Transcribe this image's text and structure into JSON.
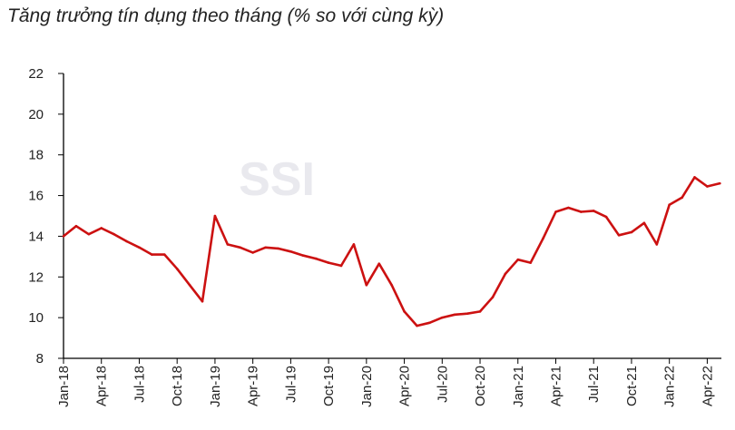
{
  "chart_data": {
    "type": "line",
    "title": "Tăng trưởng tín dụng theo tháng (% so với cùng kỳ)",
    "watermark": "SSI",
    "xlabel": "",
    "ylabel": "",
    "ylim": [
      8,
      22
    ],
    "yticks": [
      8,
      10,
      12,
      14,
      16,
      18,
      20,
      22
    ],
    "xtick_labels": [
      "Jan-18",
      "Apr-18",
      "Jul-18",
      "Oct-18",
      "Jan-19",
      "Apr-19",
      "Jul-19",
      "Oct-19",
      "Jan-20",
      "Apr-20",
      "Jul-20",
      "Oct-20",
      "Jan-21",
      "Apr-21",
      "Jul-21",
      "Oct-21",
      "Jan-22",
      "Apr-22"
    ],
    "grid": false,
    "line_color": "#cc1111",
    "x": [
      "Jan-18",
      "Feb-18",
      "Mar-18",
      "Apr-18",
      "May-18",
      "Jun-18",
      "Jul-18",
      "Aug-18",
      "Sep-18",
      "Oct-18",
      "Nov-18",
      "Dec-18",
      "Jan-19",
      "Feb-19",
      "Mar-19",
      "Apr-19",
      "May-19",
      "Jun-19",
      "Jul-19",
      "Aug-19",
      "Sep-19",
      "Oct-19",
      "Nov-19",
      "Dec-19",
      "Jan-20",
      "Feb-20",
      "Mar-20",
      "Apr-20",
      "May-20",
      "Jun-20",
      "Jul-20",
      "Aug-20",
      "Sep-20",
      "Oct-20",
      "Nov-20",
      "Dec-20",
      "Jan-21",
      "Feb-21",
      "Mar-21",
      "Apr-21",
      "May-21",
      "Jun-21",
      "Jul-21",
      "Aug-21",
      "Sep-21",
      "Oct-21",
      "Nov-21",
      "Dec-21",
      "Jan-22",
      "Feb-22",
      "Mar-22",
      "Apr-22",
      "May-22"
    ],
    "values": [
      14.0,
      14.5,
      14.1,
      14.4,
      14.1,
      13.75,
      13.45,
      13.1,
      13.1,
      12.4,
      11.6,
      10.8,
      15.0,
      13.6,
      13.45,
      13.2,
      13.45,
      13.4,
      13.25,
      13.05,
      12.9,
      12.7,
      12.55,
      13.6,
      11.6,
      12.65,
      11.6,
      10.3,
      9.6,
      9.75,
      10.0,
      10.15,
      10.2,
      10.3,
      11.0,
      12.15,
      12.85,
      12.7,
      13.9,
      15.2,
      15.4,
      15.2,
      15.25,
      14.95,
      14.05,
      14.2,
      14.65,
      13.6,
      15.55,
      15.9,
      16.9,
      16.45,
      16.6
    ]
  }
}
